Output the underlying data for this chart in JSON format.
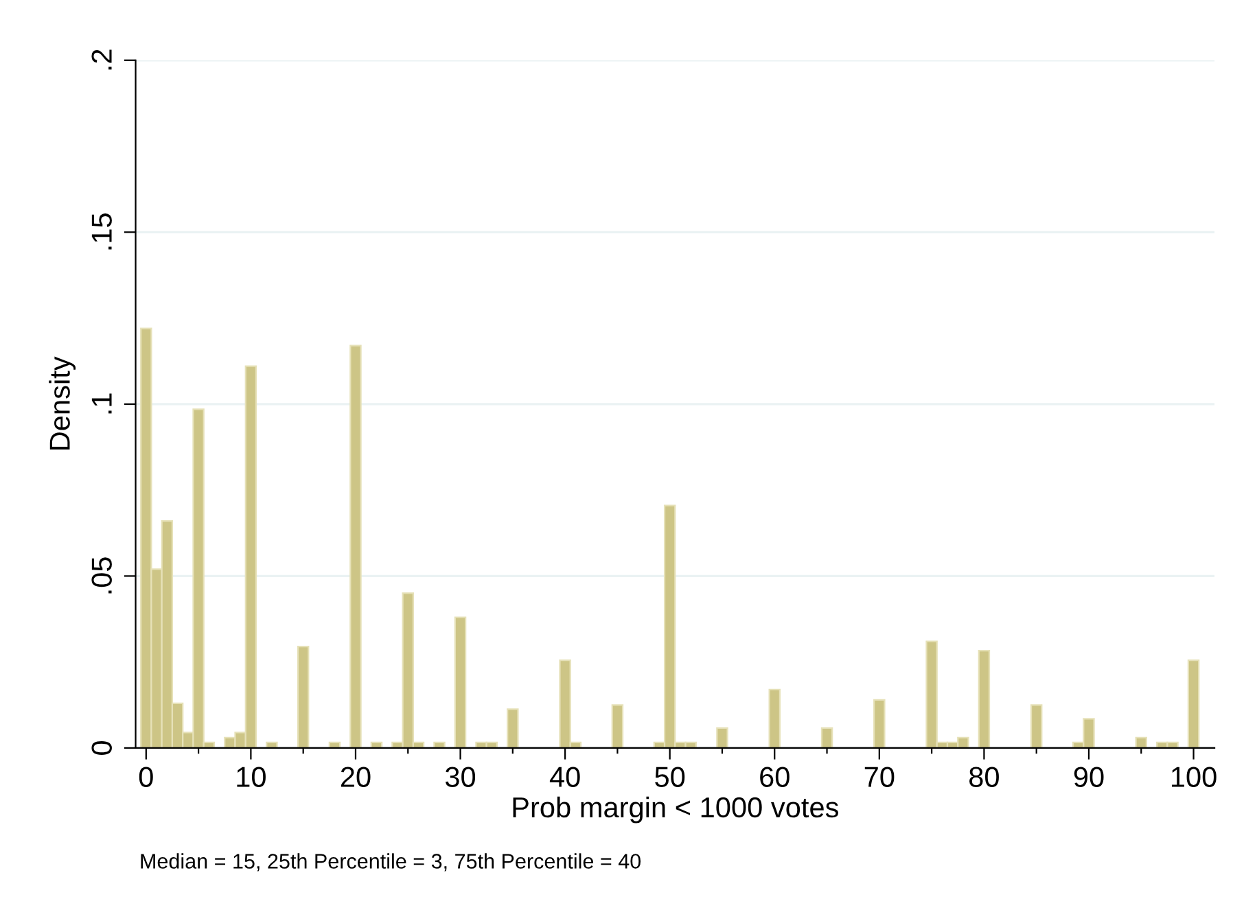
{
  "chart_data": {
    "type": "histogram",
    "xlabel": "Prob margin < 1000 votes",
    "ylabel": "Density",
    "annotations": [
      "Median = 15, 25th Percentile = 3, 75th Percentile = 40"
    ],
    "bins": [
      -0.5,
      0.5,
      1.5,
      2.5,
      3.5,
      4.5,
      5.5,
      6.5,
      7.5,
      8.5,
      9.5,
      10.5,
      11.5,
      12.5,
      13.5,
      14.5,
      15.5,
      16.5,
      17.5,
      18.5,
      19.5,
      20.5,
      21.5,
      22.5,
      23.5,
      24.5,
      25.5,
      26.5,
      27.5,
      28.5,
      29.5,
      30.5,
      31.5,
      32.5,
      33.5,
      34.5,
      35.5,
      36.5,
      37.5,
      38.5,
      39.5,
      40.5,
      41.5,
      42.5,
      43.5,
      44.5,
      45.5,
      46.5,
      47.5,
      48.5,
      49.5,
      50.5,
      51.5,
      52.5,
      53.5,
      54.5,
      55.5,
      56.5,
      57.5,
      58.5,
      59.5,
      60.5,
      61.5,
      62.5,
      63.5,
      64.5,
      65.5,
      66.5,
      67.5,
      68.5,
      69.5,
      70.5,
      71.5,
      72.5,
      73.5,
      74.5,
      75.5,
      76.5,
      77.5,
      78.5,
      79.5,
      80.5,
      81.5,
      82.5,
      83.5,
      84.5,
      85.5,
      86.5,
      87.5,
      88.5,
      89.5,
      90.5,
      91.5,
      92.5,
      93.5,
      94.5,
      95.5,
      96.5,
      97.5,
      98.5,
      99.5,
      100.5
    ],
    "values": [
      0.122,
      0.052,
      0.066,
      0.013,
      0.0045,
      0.0985,
      0.0016,
      0,
      0.003,
      0.0045,
      0.111,
      0,
      0.0016,
      0,
      0,
      0.0295,
      0,
      0,
      0.0016,
      0,
      0.117,
      0,
      0.0016,
      0,
      0.0016,
      0.045,
      0.0016,
      0,
      0.0016,
      0,
      0.038,
      0,
      0.0016,
      0.0016,
      0,
      0.0113,
      0,
      0,
      0,
      0,
      0.0255,
      0.0016,
      0,
      0,
      0,
      0.0125,
      0,
      0,
      0,
      0.0016,
      0.0705,
      0.0016,
      0.0016,
      0,
      0,
      0.0058,
      0,
      0,
      0,
      0,
      0.017,
      0,
      0,
      0,
      0,
      0.0058,
      0,
      0,
      0,
      0,
      0.014,
      0,
      0,
      0,
      0,
      0.031,
      0.0016,
      0.0016,
      0.003,
      0,
      0.0283,
      0,
      0,
      0,
      0,
      0.0125,
      0,
      0,
      0,
      0.0016,
      0.0085,
      0,
      0,
      0,
      0,
      0.003,
      0,
      0.0016,
      0.0016,
      0,
      0.0255
    ],
    "color": "#cdc586",
    "xlim": [
      -1,
      102
    ],
    "ylim": [
      0,
      0.2
    ],
    "xticks": [
      0,
      {
        "value": 5,
        "label": null
      },
      10,
      {
        "value": 15,
        "label": null
      },
      20,
      {
        "value": 25,
        "label": null
      },
      30,
      {
        "value": 35,
        "label": null
      },
      40,
      {
        "value": 45,
        "label": null
      },
      50,
      {
        "value": 55,
        "label": null
      },
      60,
      {
        "value": 65,
        "label": null
      },
      70,
      {
        "value": 75,
        "label": null
      },
      80,
      {
        "value": 85,
        "label": null
      },
      90,
      {
        "value": 95,
        "label": null
      },
      100
    ],
    "yticks": [
      {
        "value": 0,
        "label": "0"
      },
      {
        "value": 0.05,
        "label": ".05"
      },
      {
        "value": 0.1,
        "label": ".1"
      },
      {
        "value": 0.15,
        "label": ".15"
      },
      {
        "value": 0.2,
        "label": ".2"
      }
    ],
    "grid": "y"
  }
}
